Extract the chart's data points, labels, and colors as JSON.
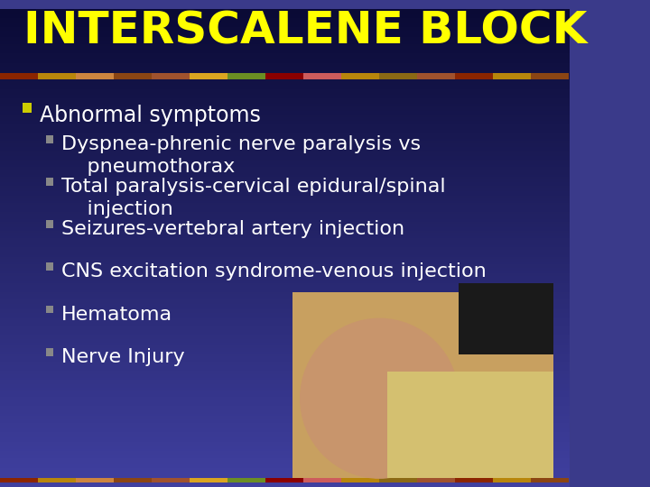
{
  "title": "INTERSCALENE BLOCK",
  "title_color": "#FFFF00",
  "title_fontsize": 36,
  "bg_color_top": "#1a1a4a",
  "bg_color_bottom": "#3a3a8a",
  "separator_colors": [
    "#8B4513",
    "#DAA520",
    "#6B8E23",
    "#8B0000"
  ],
  "bullet1_text": "Abnormal symptoms",
  "bullet1_marker_color": "#CCCC00",
  "sub_bullets": [
    "Dyspnea-phrenic nerve paralysis vs\n    pneumothorax",
    "Total paralysis-cervical epidural/spinal\n    injection",
    "Seizures-vertebral artery injection",
    "CNS excitation syndrome-venous injection",
    "Hematoma",
    "Nerve Injury"
  ],
  "bullet_color": "#FFFFFF",
  "sub_marker_color": "#888888",
  "text_fontsize": 17,
  "sub_fontsize": 16
}
